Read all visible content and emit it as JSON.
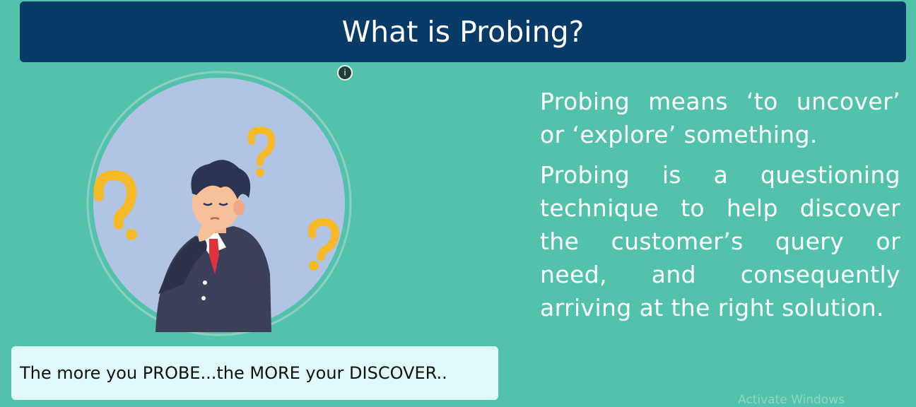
{
  "title": "What is Probing?",
  "info_icon": {
    "glyph": "i",
    "name": "info-icon"
  },
  "body": {
    "paragraph_1": "Probing means ‘to uncover’ or ‘explore’ something.",
    "paragraph_2": "Probing is a questioning technique to help discover the customer’s query or need, and consequently arriving at the right solution."
  },
  "callout": {
    "text": "The more you PROBE...the MORE your DISCOVER.."
  },
  "watermark": "Activate Windows",
  "colors": {
    "background": "#53c2ad",
    "title_bar": "#093b69",
    "callout_bg": "#dff9f9",
    "question_marks": "#f7b926",
    "circle": "#b1c4e4"
  }
}
